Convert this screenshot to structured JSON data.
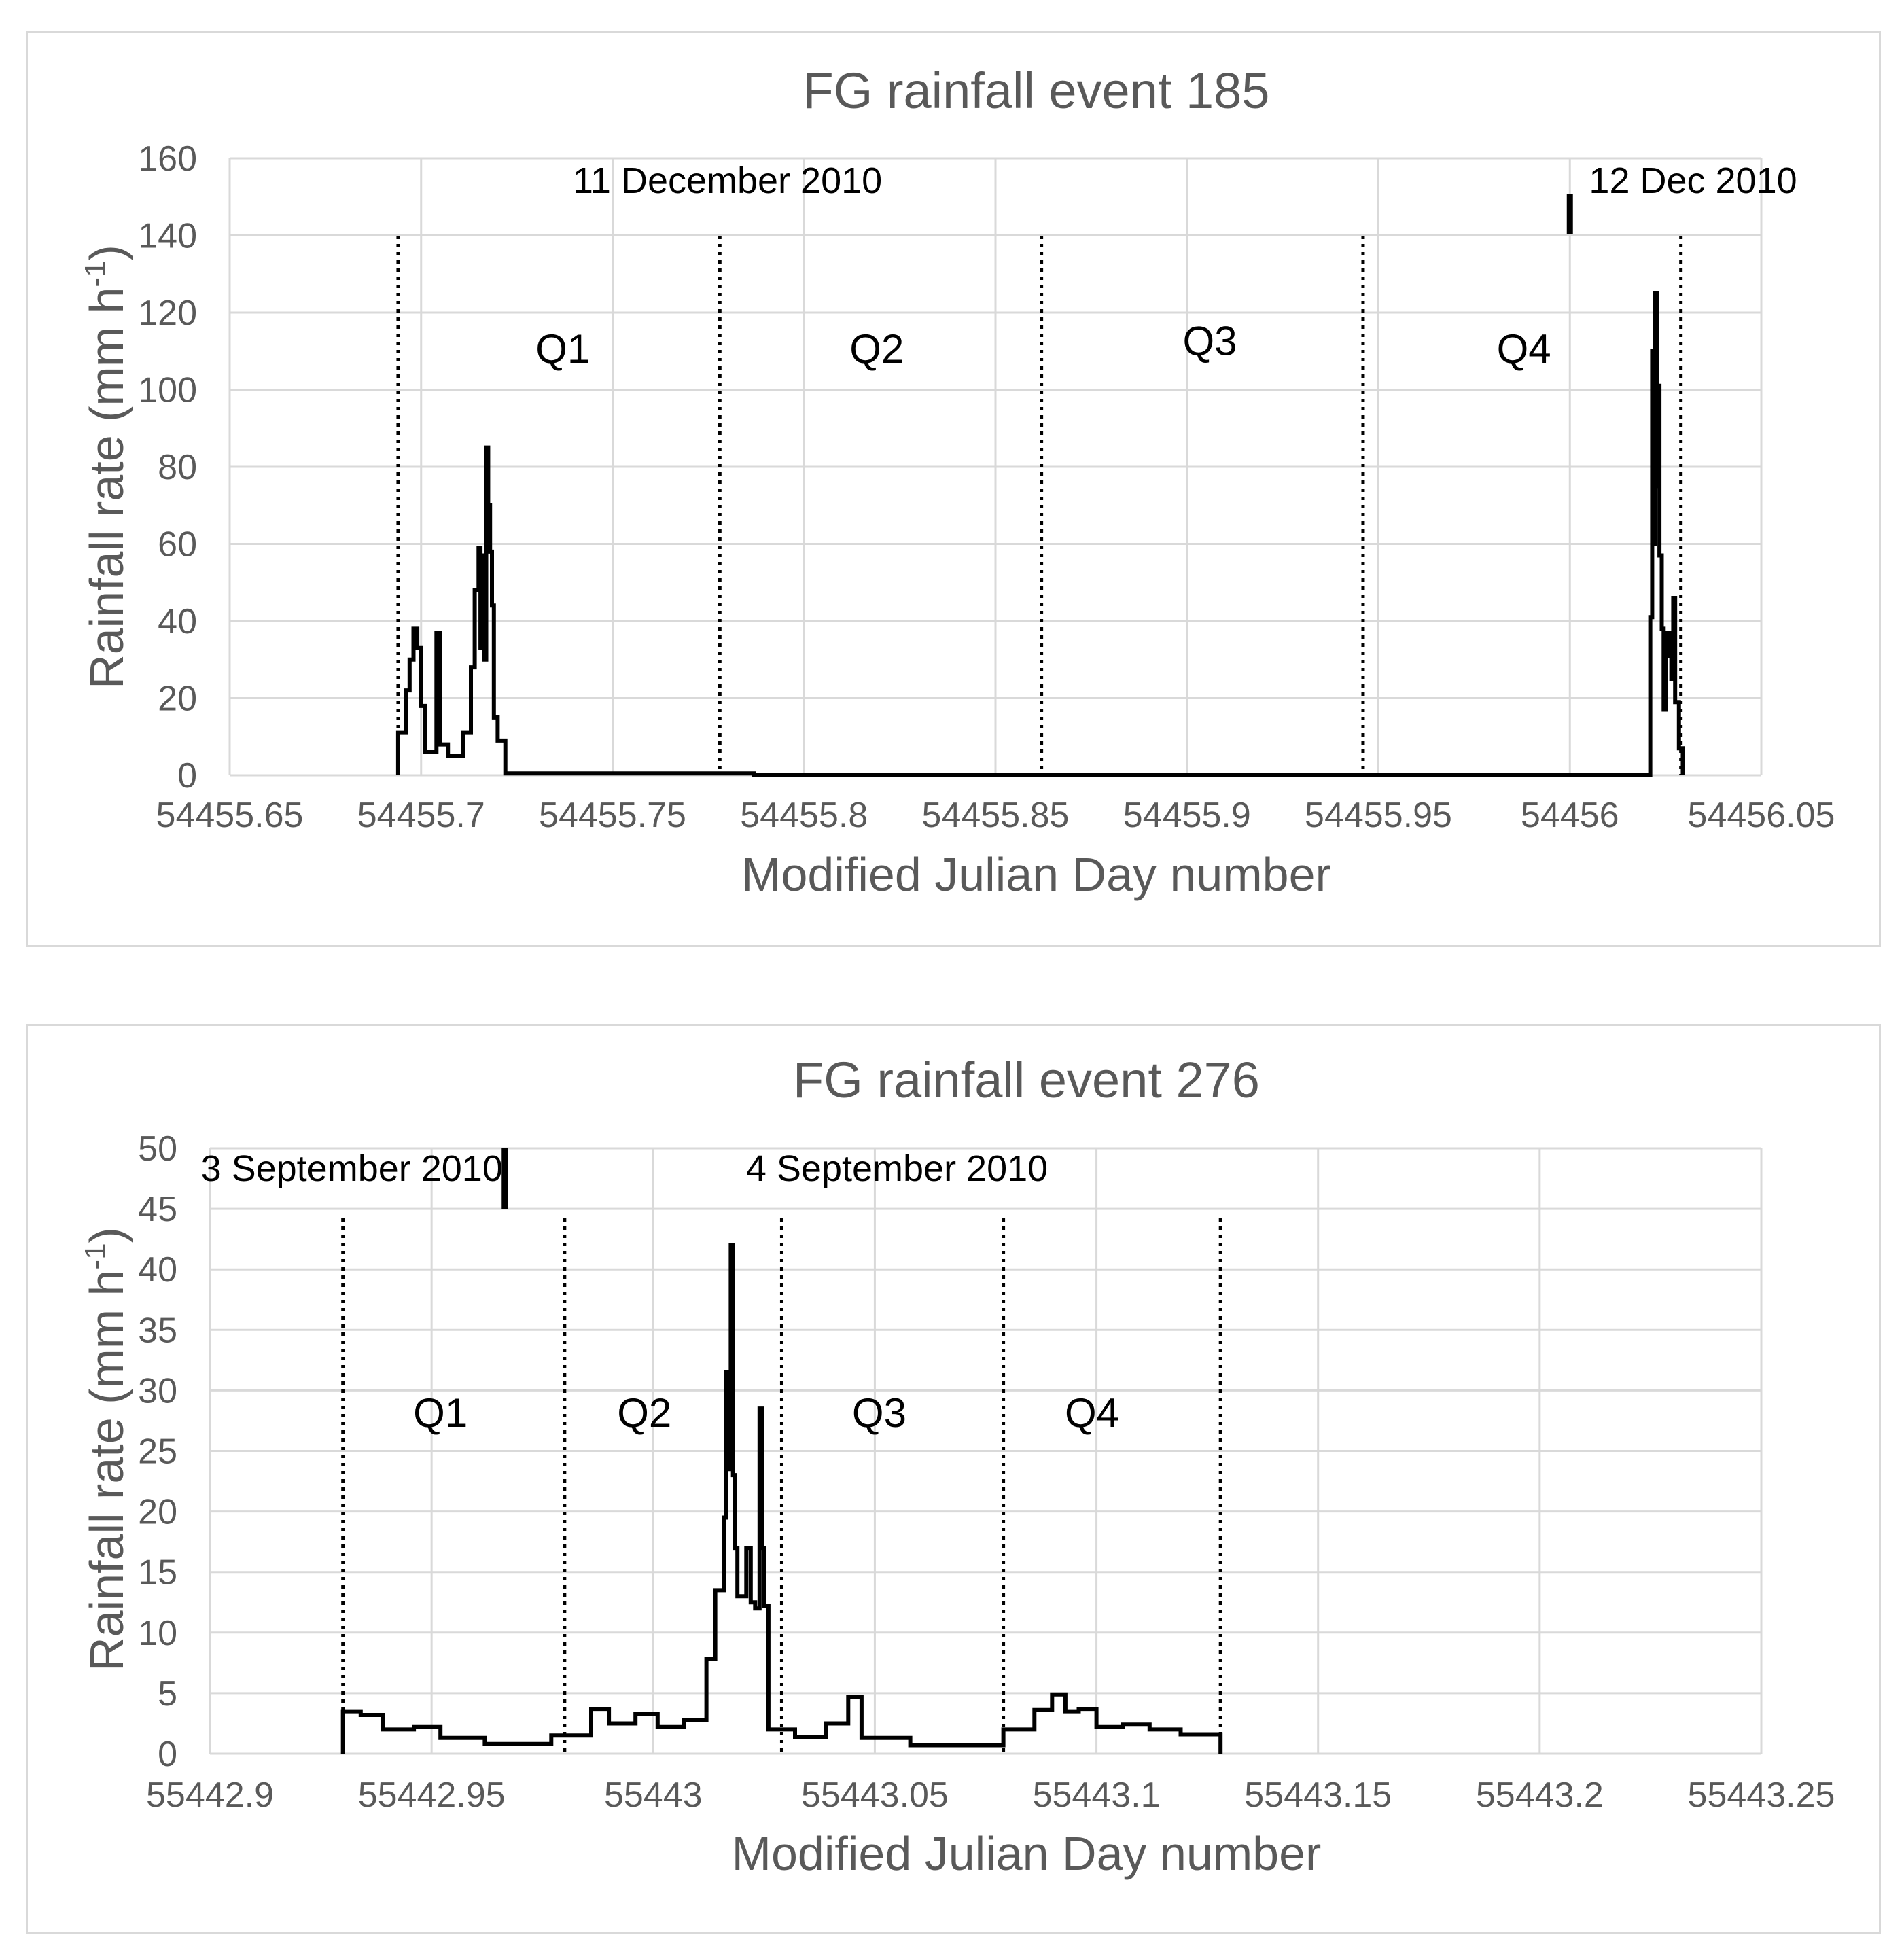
{
  "chart_data": [
    {
      "type": "line",
      "title": "FG rainfall event 185",
      "xlabel": "Modified Julian Day number",
      "ylabel_main": "Rainfall rate (mm h",
      "ylabel_sup": "-1",
      "ylabel_close": ")",
      "xlim": [
        54455.65,
        54456.05
      ],
      "ylim": [
        0,
        160
      ],
      "x_ticks": [
        54455.65,
        54455.7,
        54455.75,
        54455.8,
        54455.85,
        54455.9,
        54455.95,
        54456,
        54456.05
      ],
      "x_tick_labels": [
        "54455.65",
        "54455.7",
        "54455.75",
        "54455.8",
        "54455.85",
        "54455.9",
        "54455.95",
        "54456",
        "54456.05"
      ],
      "y_ticks": [
        0,
        20,
        40,
        60,
        80,
        100,
        120,
        140,
        160
      ],
      "y_tick_labels": [
        "0",
        "20",
        "40",
        "60",
        "80",
        "100",
        "120",
        "140",
        "160"
      ],
      "grid": true,
      "quartile_lines": [
        54455.694,
        54455.778,
        54455.862,
        54455.946,
        54456.029
      ],
      "quartile_labels": [
        {
          "text": "Q1",
          "x": 54455.737,
          "y": 107
        },
        {
          "text": "Q2",
          "x": 54455.819,
          "y": 107
        },
        {
          "text": "Q3",
          "x": 54455.906,
          "y": 109
        },
        {
          "text": "Q4",
          "x": 54455.988,
          "y": 107
        }
      ],
      "date_divider": 54456,
      "date_labels": [
        {
          "text": "11 December 2010",
          "x": 54455.78,
          "y": 151,
          "anchor": "middle"
        },
        {
          "text": "12 Dec 2010",
          "x": 54456.005,
          "y": 151,
          "anchor": "start"
        }
      ],
      "series": [
        {
          "points": [
            [
              54455.694,
              0
            ],
            [
              54455.694,
              11
            ],
            [
              54455.696,
              11
            ],
            [
              54455.696,
              22
            ],
            [
              54455.697,
              22
            ],
            [
              54455.697,
              30
            ],
            [
              54455.698,
              30
            ],
            [
              54455.698,
              38
            ],
            [
              54455.699,
              38
            ],
            [
              54455.699,
              33
            ],
            [
              54455.7,
              33
            ],
            [
              54455.7,
              18
            ],
            [
              54455.701,
              18
            ],
            [
              54455.701,
              6
            ],
            [
              54455.704,
              6
            ],
            [
              54455.704,
              37
            ],
            [
              54455.705,
              37
            ],
            [
              54455.705,
              8
            ],
            [
              54455.707,
              8
            ],
            [
              54455.707,
              5
            ],
            [
              54455.711,
              5
            ],
            [
              54455.711,
              11
            ],
            [
              54455.713,
              11
            ],
            [
              54455.713,
              28
            ],
            [
              54455.714,
              28
            ],
            [
              54455.714,
              48
            ],
            [
              54455.715,
              48
            ],
            [
              54455.715,
              59
            ],
            [
              54455.7155,
              59
            ],
            [
              54455.7155,
              33
            ],
            [
              54455.716,
              33
            ],
            [
              54455.716,
              57
            ],
            [
              54455.7165,
              57
            ],
            [
              54455.7165,
              30
            ],
            [
              54455.717,
              30
            ],
            [
              54455.717,
              85
            ],
            [
              54455.7175,
              85
            ],
            [
              54455.7175,
              70
            ],
            [
              54455.718,
              70
            ],
            [
              54455.718,
              58
            ],
            [
              54455.7185,
              58
            ],
            [
              54455.7185,
              44
            ],
            [
              54455.719,
              44
            ],
            [
              54455.719,
              15
            ],
            [
              54455.72,
              15
            ],
            [
              54455.72,
              9
            ],
            [
              54455.722,
              9
            ],
            [
              54455.722,
              0.5
            ],
            [
              54455.787,
              0.5
            ],
            [
              54455.787,
              0
            ],
            [
              54456.021,
              0
            ],
            [
              54456.021,
              41
            ],
            [
              54456.0215,
              41
            ],
            [
              54456.0215,
              110
            ],
            [
              54456.022,
              110
            ],
            [
              54456.022,
              60
            ],
            [
              54456.0223,
              60
            ],
            [
              54456.0223,
              125
            ],
            [
              54456.0227,
              125
            ],
            [
              54456.0227,
              75
            ],
            [
              54456.023,
              75
            ],
            [
              54456.023,
              101
            ],
            [
              54456.0234,
              101
            ],
            [
              54456.0234,
              57
            ],
            [
              54456.024,
              57
            ],
            [
              54456.024,
              38
            ],
            [
              54456.0245,
              38
            ],
            [
              54456.0245,
              17
            ],
            [
              54456.025,
              17
            ],
            [
              54456.025,
              37
            ],
            [
              54456.0255,
              37
            ],
            [
              54456.0255,
              31
            ],
            [
              54456.026,
              31
            ],
            [
              54456.026,
              37
            ],
            [
              54456.0265,
              37
            ],
            [
              54456.0265,
              25
            ],
            [
              54456.027,
              25
            ],
            [
              54456.027,
              46
            ],
            [
              54456.0275,
              46
            ],
            [
              54456.0275,
              19
            ],
            [
              54456.0285,
              19
            ],
            [
              54456.0285,
              7
            ],
            [
              54456.0295,
              7
            ],
            [
              54456.0295,
              0
            ]
          ]
        }
      ]
    },
    {
      "type": "line",
      "title": "FG rainfall event 276",
      "xlabel": "Modified Julian Day number",
      "ylabel_main": "Rainfall rate (mm h",
      "ylabel_sup": "-1",
      "ylabel_close": ")",
      "xlim": [
        55442.9,
        55443.25
      ],
      "ylim": [
        0,
        50
      ],
      "x_ticks": [
        55442.9,
        55442.95,
        55443,
        55443.05,
        55443.1,
        55443.15,
        55443.2,
        55443.25
      ],
      "x_tick_labels": [
        "55442.9",
        "55442.95",
        "55443",
        "55443.05",
        "55443.1",
        "55443.15",
        "55443.2",
        "55443.25"
      ],
      "y_ticks": [
        0,
        5,
        10,
        15,
        20,
        25,
        30,
        35,
        40,
        45,
        50
      ],
      "y_tick_labels": [
        "0",
        "5",
        "10",
        "15",
        "20",
        "25",
        "30",
        "35",
        "40",
        "45",
        "50"
      ],
      "grid": true,
      "quartile_lines": [
        55442.93,
        55442.98,
        55443.029,
        55443.079,
        55443.128
      ],
      "quartile_labels": [
        {
          "text": "Q1",
          "x": 55442.952,
          "y": 27
        },
        {
          "text": "Q2",
          "x": 55442.998,
          "y": 27
        },
        {
          "text": "Q3",
          "x": 55443.051,
          "y": 27
        },
        {
          "text": "Q4",
          "x": 55443.099,
          "y": 27
        }
      ],
      "date_divider": 55442.9665,
      "date_labels": [
        {
          "text": "3 September 2010",
          "x": 55442.932,
          "y": 47.3,
          "anchor": "middle"
        },
        {
          "text": "4 September 2010",
          "x": 55443.055,
          "y": 47.3,
          "anchor": "middle"
        }
      ],
      "series": [
        {
          "points": [
            [
              55442.93,
              0
            ],
            [
              55442.93,
              3.5
            ],
            [
              55442.934,
              3.5
            ],
            [
              55442.934,
              3.2
            ],
            [
              55442.939,
              3.2
            ],
            [
              55442.939,
              2.0
            ],
            [
              55442.946,
              2.0
            ],
            [
              55442.946,
              2.2
            ],
            [
              55442.952,
              2.2
            ],
            [
              55442.952,
              1.3
            ],
            [
              55442.962,
              1.3
            ],
            [
              55442.962,
              0.8
            ],
            [
              55442.977,
              0.8
            ],
            [
              55442.977,
              1.5
            ],
            [
              55442.986,
              1.5
            ],
            [
              55442.986,
              3.7
            ],
            [
              55442.99,
              3.7
            ],
            [
              55442.99,
              2.5
            ],
            [
              55442.996,
              2.5
            ],
            [
              55442.996,
              3.3
            ],
            [
              55443.001,
              3.3
            ],
            [
              55443.001,
              2.2
            ],
            [
              55443.007,
              2.2
            ],
            [
              55443.007,
              2.8
            ],
            [
              55443.012,
              2.8
            ],
            [
              55443.012,
              7.8
            ],
            [
              55443.014,
              7.8
            ],
            [
              55443.014,
              13.5
            ],
            [
              55443.016,
              13.5
            ],
            [
              55443.016,
              19.5
            ],
            [
              55443.0165,
              19.5
            ],
            [
              55443.0165,
              31.5
            ],
            [
              55443.017,
              31.5
            ],
            [
              55443.017,
              23.5
            ],
            [
              55443.0175,
              23.5
            ],
            [
              55443.0175,
              42
            ],
            [
              55443.018,
              42
            ],
            [
              55443.018,
              23
            ],
            [
              55443.0185,
              23
            ],
            [
              55443.0185,
              17
            ],
            [
              55443.019,
              17
            ],
            [
              55443.019,
              13
            ],
            [
              55443.021,
              13
            ],
            [
              55443.021,
              17
            ],
            [
              55443.022,
              17
            ],
            [
              55443.022,
              12.5
            ],
            [
              55443.023,
              12.5
            ],
            [
              55443.023,
              12
            ],
            [
              55443.024,
              12
            ],
            [
              55443.024,
              28.5
            ],
            [
              55443.0245,
              28.5
            ],
            [
              55443.0245,
              17
            ],
            [
              55443.025,
              17
            ],
            [
              55443.025,
              12.2
            ],
            [
              55443.026,
              12.2
            ],
            [
              55443.026,
              2.0
            ],
            [
              55443.032,
              2.0
            ],
            [
              55443.032,
              1.4
            ],
            [
              55443.039,
              1.4
            ],
            [
              55443.039,
              2.5
            ],
            [
              55443.044,
              2.5
            ],
            [
              55443.044,
              4.7
            ],
            [
              55443.047,
              4.7
            ],
            [
              55443.047,
              1.3
            ],
            [
              55443.058,
              1.3
            ],
            [
              55443.058,
              0.7
            ],
            [
              55443.079,
              0.7
            ],
            [
              55443.079,
              2.0
            ],
            [
              55443.086,
              2.0
            ],
            [
              55443.086,
              3.6
            ],
            [
              55443.09,
              3.6
            ],
            [
              55443.09,
              4.9
            ],
            [
              55443.093,
              4.9
            ],
            [
              55443.093,
              3.5
            ],
            [
              55443.096,
              3.5
            ],
            [
              55443.096,
              3.7
            ],
            [
              55443.1,
              3.7
            ],
            [
              55443.1,
              2.2
            ],
            [
              55443.106,
              2.2
            ],
            [
              55443.106,
              2.4
            ],
            [
              55443.112,
              2.4
            ],
            [
              55443.112,
              2.0
            ],
            [
              55443.119,
              2.0
            ],
            [
              55443.119,
              1.6
            ],
            [
              55443.128,
              1.6
            ],
            [
              55443.128,
              0
            ]
          ]
        }
      ]
    }
  ]
}
